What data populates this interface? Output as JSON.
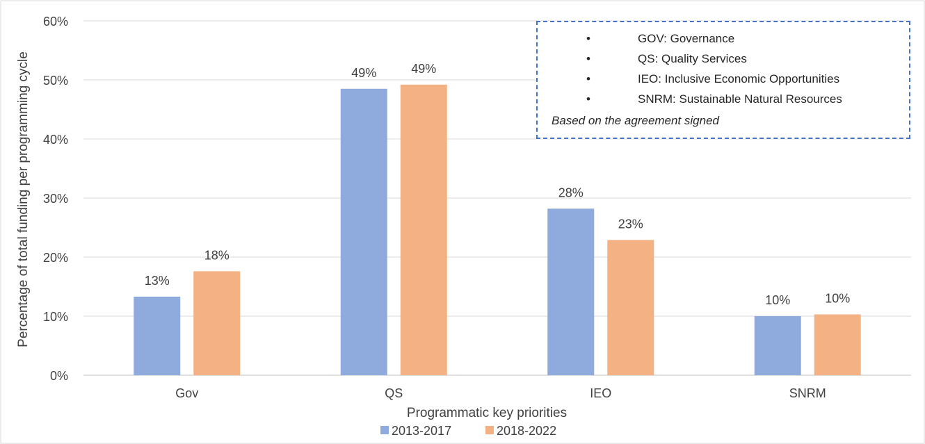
{
  "chart_data": {
    "type": "bar",
    "title": "",
    "xlabel": "Programmatic key priorities",
    "ylabel": "Percentage of total funding per programming cycle",
    "ylim": [
      0,
      60
    ],
    "yticks": [
      "0%",
      "10%",
      "20%",
      "30%",
      "40%",
      "50%",
      "60%"
    ],
    "categories": [
      "Gov",
      "QS",
      "IEO",
      "SNRM"
    ],
    "series": [
      {
        "name": "2013-2017",
        "color": "#8FAADC",
        "values": [
          13.3,
          48.5,
          28.2,
          10.0
        ],
        "labels": [
          "13%",
          "49%",
          "28%",
          "10%"
        ]
      },
      {
        "name": "2018-2022",
        "color": "#F4B183",
        "values": [
          17.6,
          49.2,
          22.9,
          10.3
        ],
        "labels": [
          "18%",
          "49%",
          "23%",
          "10%"
        ]
      }
    ],
    "grid": true,
    "legend_position": "bottom"
  },
  "notes": {
    "bullet": "•",
    "items": [
      "GOV: Governance",
      "QS: Quality Services",
      "IEO: Inclusive Economic Opportunities",
      "SNRM: Sustainable Natural Resources"
    ],
    "footer": "Based on the agreement signed"
  }
}
